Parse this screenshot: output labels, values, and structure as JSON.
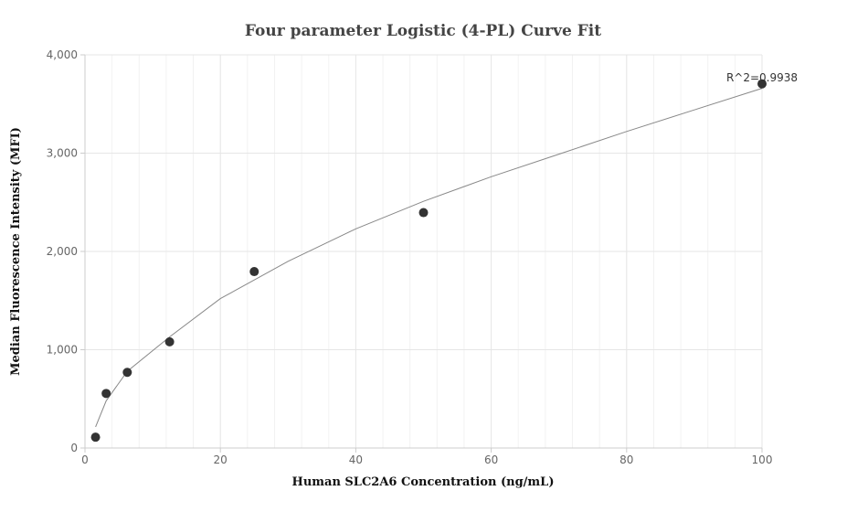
{
  "chart_data": {
    "type": "scatter",
    "title": "Four parameter Logistic (4-PL) Curve Fit",
    "xlabel": "Human SLC2A6 Concentration (ng/mL)",
    "ylabel": "Median Fluorescence Intensity (MFI)",
    "xlim": [
      0,
      100
    ],
    "ylim": [
      0,
      4000
    ],
    "x_ticks": [
      0,
      20,
      40,
      60,
      80,
      100
    ],
    "x_tick_labels": [
      "0",
      "20",
      "40",
      "60",
      "80",
      "100"
    ],
    "y_ticks": [
      0,
      1000,
      2000,
      3000,
      4000
    ],
    "y_tick_labels": [
      "0",
      "1,000",
      "2,000",
      "3,000",
      "4,000"
    ],
    "grid": true,
    "points": {
      "x": [
        1.56,
        3.13,
        6.25,
        12.5,
        25,
        50,
        100
      ],
      "y": [
        110,
        555,
        770,
        1080,
        1795,
        2395,
        3705
      ]
    },
    "fit_curve": {
      "x": [
        1.56,
        3.13,
        6.25,
        12.5,
        20,
        25,
        30,
        40,
        50,
        60,
        70,
        80,
        90,
        100
      ],
      "y": [
        215,
        480,
        780,
        1130,
        1520,
        1710,
        1900,
        2230,
        2510,
        2760,
        2990,
        3220,
        3440,
        3660
      ]
    },
    "annotation": "R^2=0.9938",
    "colors": {
      "points": "#333333",
      "curve": "#888888",
      "grid_major": "#e6e6e6",
      "grid_minor": "#f2f2f2",
      "axis": "#cccccc"
    }
  }
}
